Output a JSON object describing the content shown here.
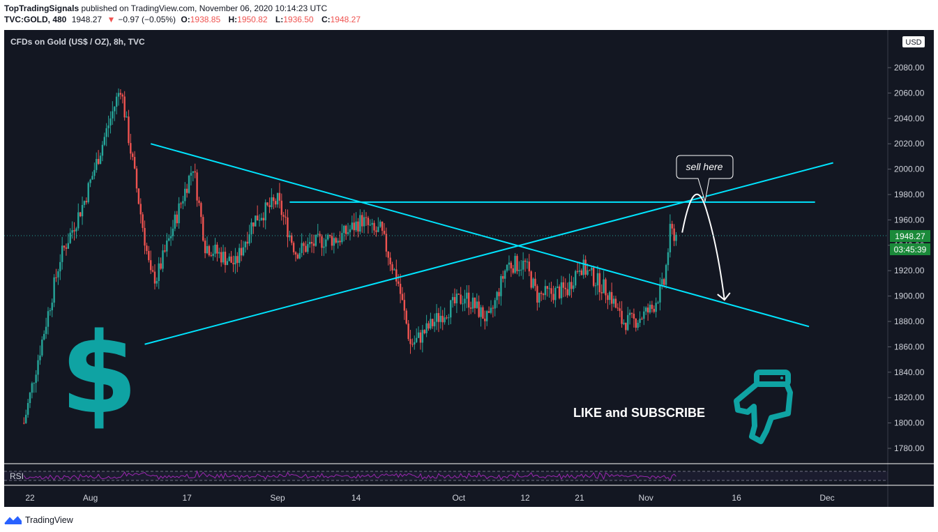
{
  "header": {
    "author": "TopTradingSignals",
    "published_text": "published on TradingView.com, November 06, 2020 10:14:23 UTC",
    "symbol": "TVC:GOLD, 480",
    "last": "1948.27",
    "change_arrow": "▼",
    "change": "−0.97 (−0.05%)",
    "o_label": "O:",
    "o_value": "1938.85",
    "h_label": "H:",
    "h_value": "1950.82",
    "l_label": "L:",
    "l_value": "1936.50",
    "c_label": "C:",
    "c_value": "1948.27"
  },
  "chart": {
    "legend": "CFDs on Gold (US$ / OZ), 8h, TVC",
    "currency_badge": "USD",
    "last_price_tag": "1948.27",
    "countdown_tag": "03:45:39",
    "rsi_label": "RSI",
    "annotation_text": "sell here",
    "cta_text": "LIKE and SUBSCRIBE",
    "icons": [
      "dollar-sign-icon",
      "pointing-hand-icon"
    ],
    "colors": {
      "background": "#131722",
      "up": "#26a69a",
      "down": "#ef5350",
      "trendline": "#00e5ff",
      "accent": "#0fa3a3",
      "price_tag": "#1b8a3a"
    }
  },
  "chart_data": {
    "type": "candlestick",
    "title": "CFDs on Gold (US$ / OZ), 8h, TVC",
    "y_ticks": [
      1780,
      1800,
      1820,
      1840,
      1860,
      1880,
      1900,
      1920,
      1940,
      1960,
      1980,
      2000,
      2020,
      2040,
      2060,
      2080
    ],
    "y_tick_labels": [
      "1780.00",
      "1800.00",
      "1820.00",
      "1840.00",
      "1860.00",
      "1880.00",
      "1900.00",
      "1920.00",
      "1940.00",
      "1960.00",
      "1980.00",
      "2000.00",
      "2020.00",
      "2040.00",
      "2060.00",
      "2080.00"
    ],
    "ylim": [
      1767,
      2105
    ],
    "x_tick_labels": [
      "22",
      "Aug",
      "17",
      "Sep",
      "14",
      "Oct",
      "12",
      "21",
      "Nov",
      "16",
      "Dec"
    ],
    "close_path": [
      [
        "Jul 21",
        1800
      ],
      [
        "Jul 27",
        1930
      ],
      [
        "Jul 31",
        1975
      ],
      [
        "Aug 6",
        2065
      ],
      [
        "Aug 7",
        2035
      ],
      [
        "Aug 11",
        1915
      ],
      [
        "Aug 12",
        1915
      ],
      [
        "Aug 14",
        1944
      ],
      [
        "Aug 18",
        2003
      ],
      [
        "Aug 20",
        1940
      ],
      [
        "Aug 25",
        1925
      ],
      [
        "Aug 28",
        1960
      ],
      [
        "Sep 1",
        1975
      ],
      [
        "Sep 4",
        1935
      ],
      [
        "Sep 9",
        1945
      ],
      [
        "Sep 11",
        1945
      ],
      [
        "Sep 15",
        1960
      ],
      [
        "Sep 17",
        1950
      ],
      [
        "Sep 18",
        1952
      ],
      [
        "Sep 21",
        1910
      ],
      [
        "Sep 23",
        1862
      ],
      [
        "Sep 24",
        1865
      ],
      [
        "Sep 28",
        1885
      ],
      [
        "Oct 2",
        1900
      ],
      [
        "Oct 6",
        1880
      ],
      [
        "Oct 9",
        1925
      ],
      [
        "Oct 12",
        1925
      ],
      [
        "Oct 14",
        1900
      ],
      [
        "Oct 19",
        1905
      ],
      [
        "Oct 21",
        1925
      ],
      [
        "Oct 26",
        1902
      ],
      [
        "Oct 28",
        1880
      ],
      [
        "Oct 30",
        1880
      ],
      [
        "Nov 2",
        1890
      ],
      [
        "Nov 4",
        1910
      ],
      [
        "Nov 5",
        1950
      ],
      [
        "Nov 6",
        1948.27
      ]
    ],
    "last_close": 1948.27,
    "last_ohlc": {
      "open": 1938.85,
      "high": 1950.82,
      "low": 1936.5,
      "close": 1948.27
    },
    "horizontal_resistance": 1974,
    "trendlines": [
      {
        "from": [
          "Aug 11",
          2020
        ],
        "to": [
          "Nov 28",
          1876
        ]
      },
      {
        "from": [
          "Aug 10",
          1862
        ],
        "to": [
          "Dec 2",
          2005
        ]
      }
    ],
    "projection_path": [
      [
        "Nov 7",
        1950
      ],
      [
        "Nov 10",
        1971
      ],
      [
        "Nov 14",
        1897
      ]
    ],
    "grid": false,
    "legend_position": "top-left"
  }
}
